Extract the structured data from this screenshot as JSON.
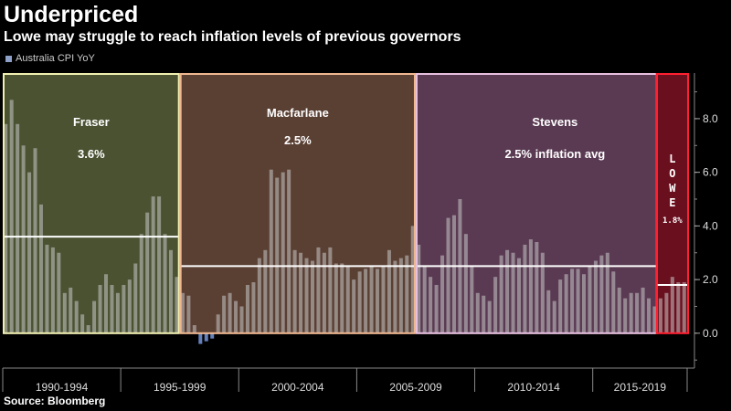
{
  "header": {
    "title": "Underpriced",
    "subtitle": "Lowe may struggle to reach inflation levels of previous governors"
  },
  "legend": {
    "label": "Australia CPI YoY"
  },
  "source": "Source: Bloomberg",
  "colors": {
    "background": "#000000",
    "bar": "#c8c8c8",
    "bar_negative": "#6f8fd0",
    "fraser_fill": "#4a5232",
    "fraser_border": "#f0f0b0",
    "macfarlane_fill": "#5a3f33",
    "macfarlane_border": "#f0b890",
    "stevens_fill": "#5a3a52",
    "stevens_border": "#e8c0e0",
    "lowe_fill": "#6a0f1e",
    "lowe_border": "#ff2030",
    "avg_line": "#ffffff"
  },
  "chart_data": {
    "type": "bar",
    "title": "Underpriced",
    "subtitle": "Lowe may struggle to reach inflation levels of previous governors",
    "series": [
      {
        "name": "Australia CPI YoY",
        "x_start": "1990 Q1",
        "frequency": "quarterly",
        "values": [
          7.8,
          8.7,
          7.8,
          7.0,
          6.0,
          6.9,
          4.8,
          3.3,
          3.2,
          3.0,
          1.5,
          1.7,
          1.2,
          0.7,
          0.3,
          1.2,
          1.8,
          2.2,
          1.8,
          1.5,
          1.8,
          2.0,
          2.6,
          3.7,
          4.5,
          5.1,
          5.1,
          3.7,
          3.1,
          2.1,
          1.5,
          1.4,
          0.3,
          -0.4,
          -0.3,
          -0.2,
          0.7,
          1.4,
          1.5,
          1.2,
          1.0,
          1.8,
          1.9,
          2.8,
          3.1,
          6.1,
          5.8,
          6.0,
          6.1,
          3.1,
          3.0,
          2.8,
          2.7,
          3.2,
          3.0,
          3.2,
          2.6,
          2.6,
          2.5,
          2.0,
          2.3,
          2.4,
          2.5,
          2.4,
          2.5,
          3.1,
          2.7,
          2.8,
          2.9,
          4.0,
          3.3,
          2.5,
          2.1,
          1.8,
          2.9,
          4.3,
          4.4,
          5.0,
          3.7,
          2.5,
          1.5,
          1.4,
          1.2,
          2.1,
          2.9,
          3.1,
          3.0,
          2.8,
          3.3,
          3.5,
          3.4,
          3.0,
          1.6,
          1.2,
          2.0,
          2.2,
          2.4,
          2.4,
          2.2,
          2.5,
          2.7,
          2.9,
          3.0,
          2.3,
          1.7,
          1.3,
          1.5,
          1.5,
          1.7,
          1.3,
          1.0,
          1.3,
          1.5,
          2.1,
          1.9,
          1.9
        ]
      }
    ],
    "x_axis": {
      "tick_labels": [
        "1990-1994",
        "1995-1999",
        "2000-2004",
        "2005-2009",
        "2010-2014",
        "2015-2019"
      ]
    },
    "y_axis": {
      "position": "right",
      "ticks": [
        0.0,
        2.0,
        4.0,
        6.0,
        8.0
      ],
      "tick_labels": [
        "0.0",
        "2.0",
        "4.0",
        "6.0",
        "8.0"
      ],
      "ylim": [
        -1.3,
        9.7
      ]
    },
    "periods": [
      {
        "id": "fraser",
        "name": "Fraser",
        "avg_label": "3.6%",
        "avg": 3.6,
        "start_index": 0,
        "end_index": 29
      },
      {
        "id": "macfarlane",
        "name": "Macfarlane",
        "avg_label": "2.5%",
        "avg": 2.5,
        "start_index": 30,
        "end_index": 69
      },
      {
        "id": "stevens",
        "name": "Stevens",
        "avg_label": "2.5% inflation avg",
        "avg": 2.5,
        "start_index": 70,
        "end_index": 110
      },
      {
        "id": "lowe",
        "name": "LOWE",
        "avg_label": "1.8%",
        "avg": 1.8,
        "start_index": 111,
        "end_index": 115
      }
    ]
  }
}
